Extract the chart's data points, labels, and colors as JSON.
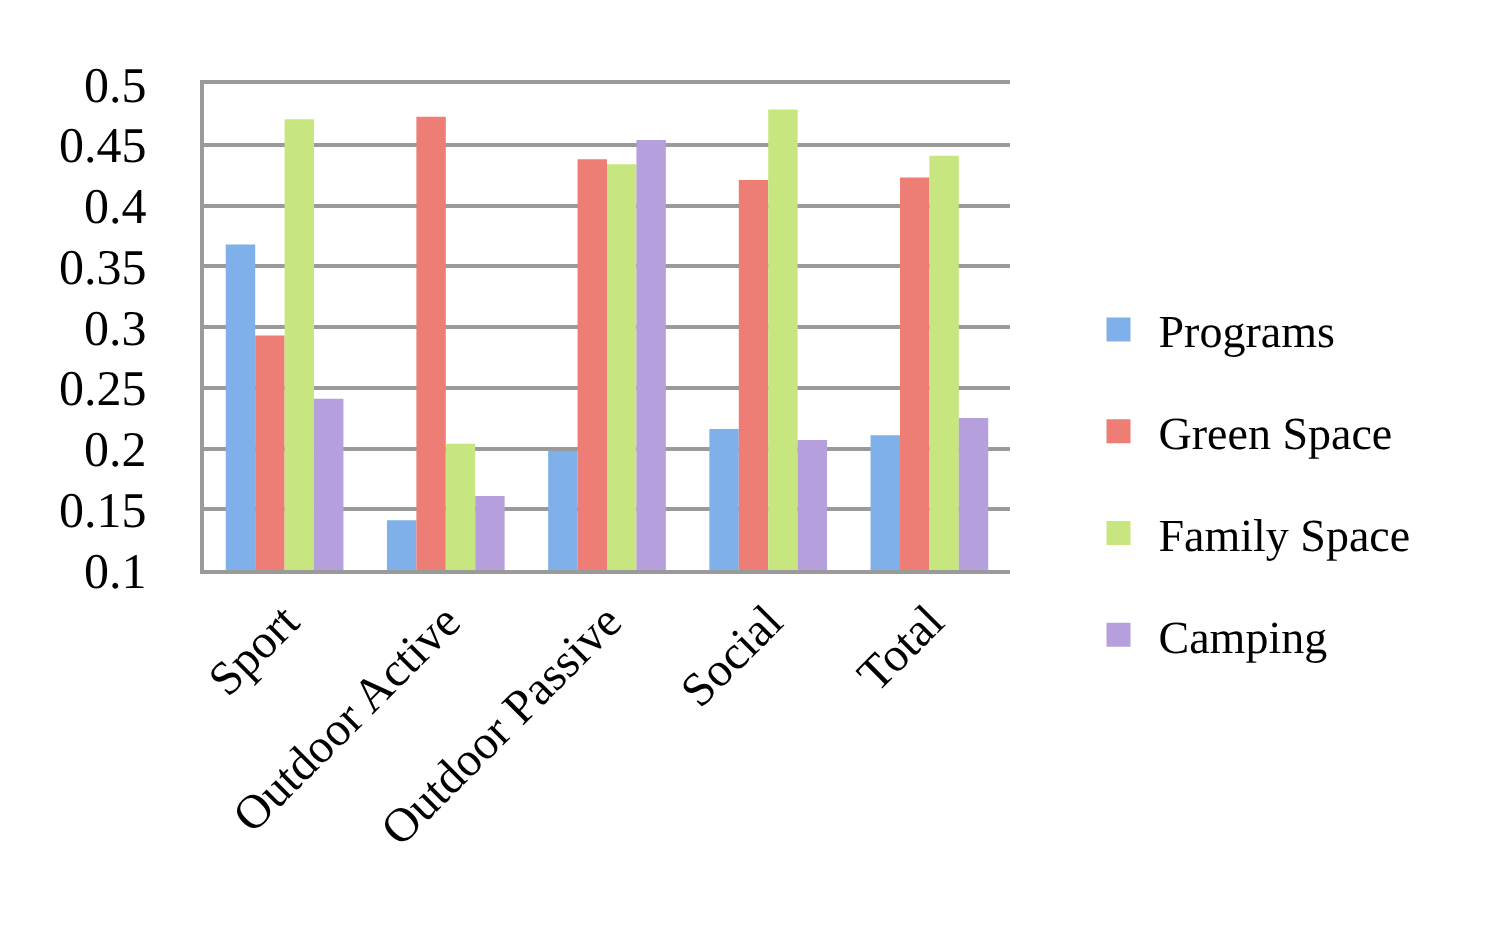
{
  "chart_data": {
    "type": "bar",
    "categories": [
      "Sport",
      "Outdoor Active",
      "Outdoor Passive",
      "Social",
      "Total"
    ],
    "series": [
      {
        "name": "Programs",
        "color": "#7fb0e9",
        "values": [
          0.368,
          0.141,
          0.198,
          0.216,
          0.211
        ]
      },
      {
        "name": "Green Space",
        "color": "#ee7d76",
        "values": [
          0.293,
          0.473,
          0.438,
          0.421,
          0.423
        ]
      },
      {
        "name": "Family Space",
        "color": "#c8e67f",
        "values": [
          0.471,
          0.204,
          0.434,
          0.479,
          0.441
        ]
      },
      {
        "name": "Camping",
        "color": "#b59fdc",
        "values": [
          0.241,
          0.161,
          0.454,
          0.207,
          0.225
        ]
      }
    ],
    "ylim": [
      0.1,
      0.5
    ],
    "yticks": [
      0.1,
      0.15,
      0.2,
      0.25,
      0.3,
      0.35,
      0.4,
      0.45,
      0.5
    ],
    "grid": "y",
    "legend": "right"
  }
}
